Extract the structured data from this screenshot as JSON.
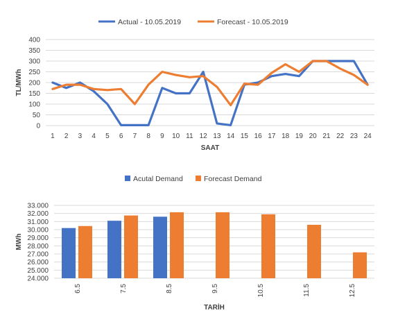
{
  "chart_data": [
    {
      "type": "line",
      "legend_position": "top",
      "grid": true,
      "xlabel": "SAAT",
      "ylabel": "TL/MWh",
      "ylim": [
        0,
        400
      ],
      "yticks": [
        "0",
        "50",
        "100",
        "150",
        "200",
        "250",
        "300",
        "350",
        "400"
      ],
      "x": [
        "1",
        "2",
        "3",
        "4",
        "5",
        "6",
        "7",
        "8",
        "9",
        "10",
        "11",
        "12",
        "13",
        "14",
        "15",
        "16",
        "17",
        "18",
        "19",
        "20",
        "21",
        "22",
        "23",
        "24"
      ],
      "series": [
        {
          "name": "Actual - 10.05.2019",
          "color": "#4472c4",
          "values": [
            200,
            175,
            200,
            160,
            100,
            2,
            2,
            2,
            175,
            150,
            150,
            250,
            10,
            2,
            190,
            200,
            230,
            240,
            230,
            300,
            300,
            300,
            300,
            190
          ]
        },
        {
          "name": "Forecast - 10.05.2019",
          "color": "#ed7d31",
          "values": [
            170,
            190,
            190,
            170,
            165,
            170,
            100,
            190,
            250,
            235,
            225,
            230,
            180,
            95,
            195,
            190,
            245,
            285,
            250,
            300,
            300,
            265,
            235,
            190
          ]
        }
      ]
    },
    {
      "type": "bar",
      "legend_position": "top",
      "grid": true,
      "xlabel": "TARİH",
      "ylabel": "MWh",
      "ylim": [
        24000,
        33000
      ],
      "yticks": [
        "24.000",
        "25.000",
        "26.000",
        "27.000",
        "28.000",
        "29.000",
        "30.000",
        "31.000",
        "32.000",
        "33.000"
      ],
      "categories": [
        "6.5",
        "7.5",
        "8.5",
        "9.5",
        "10.5",
        "11.5",
        "12.5"
      ],
      "series": [
        {
          "name": "Acutal Demand",
          "color": "#4472c4",
          "values": [
            30200,
            31100,
            31600,
            null,
            null,
            null,
            null
          ]
        },
        {
          "name": "Forecast Demand",
          "color": "#ed7d31",
          "values": [
            30450,
            31750,
            32150,
            32150,
            31900,
            30600,
            27200
          ]
        }
      ]
    }
  ]
}
